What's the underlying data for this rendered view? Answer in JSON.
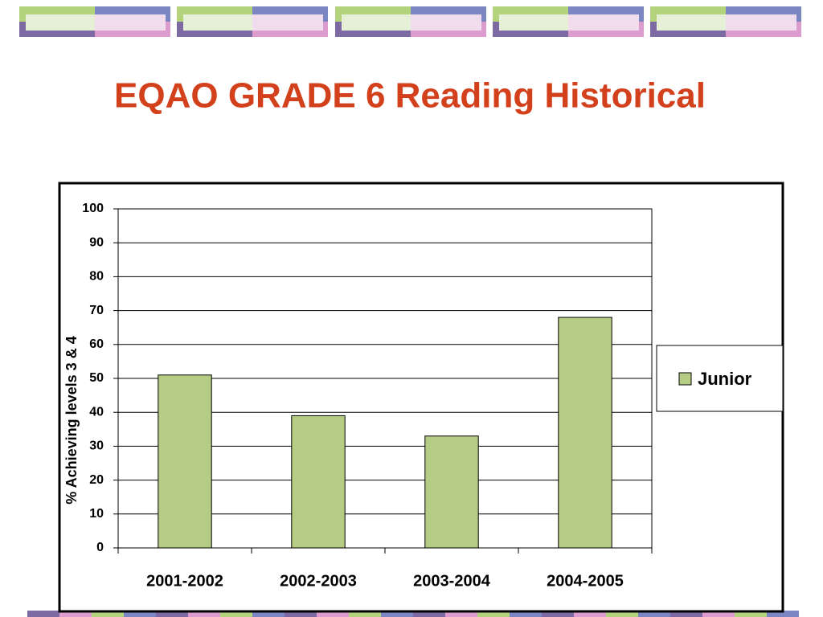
{
  "chart_data": {
    "type": "bar",
    "title": "EQAO GRADE 6 Reading Historical",
    "y_label": "% Achieving levels 3 & 4",
    "categories": [
      "2001-2002",
      "2002-2003",
      "2003-2004",
      "2004-2005"
    ],
    "series": [
      {
        "name": "Junior",
        "color": "#b5cc85",
        "values": [
          51,
          39,
          33,
          68
        ]
      }
    ],
    "ylim": [
      0,
      100
    ],
    "yticks": [
      0,
      10,
      20,
      30,
      40,
      50,
      60,
      70,
      80,
      90,
      100
    ],
    "grid": true,
    "legend": "right"
  }
}
